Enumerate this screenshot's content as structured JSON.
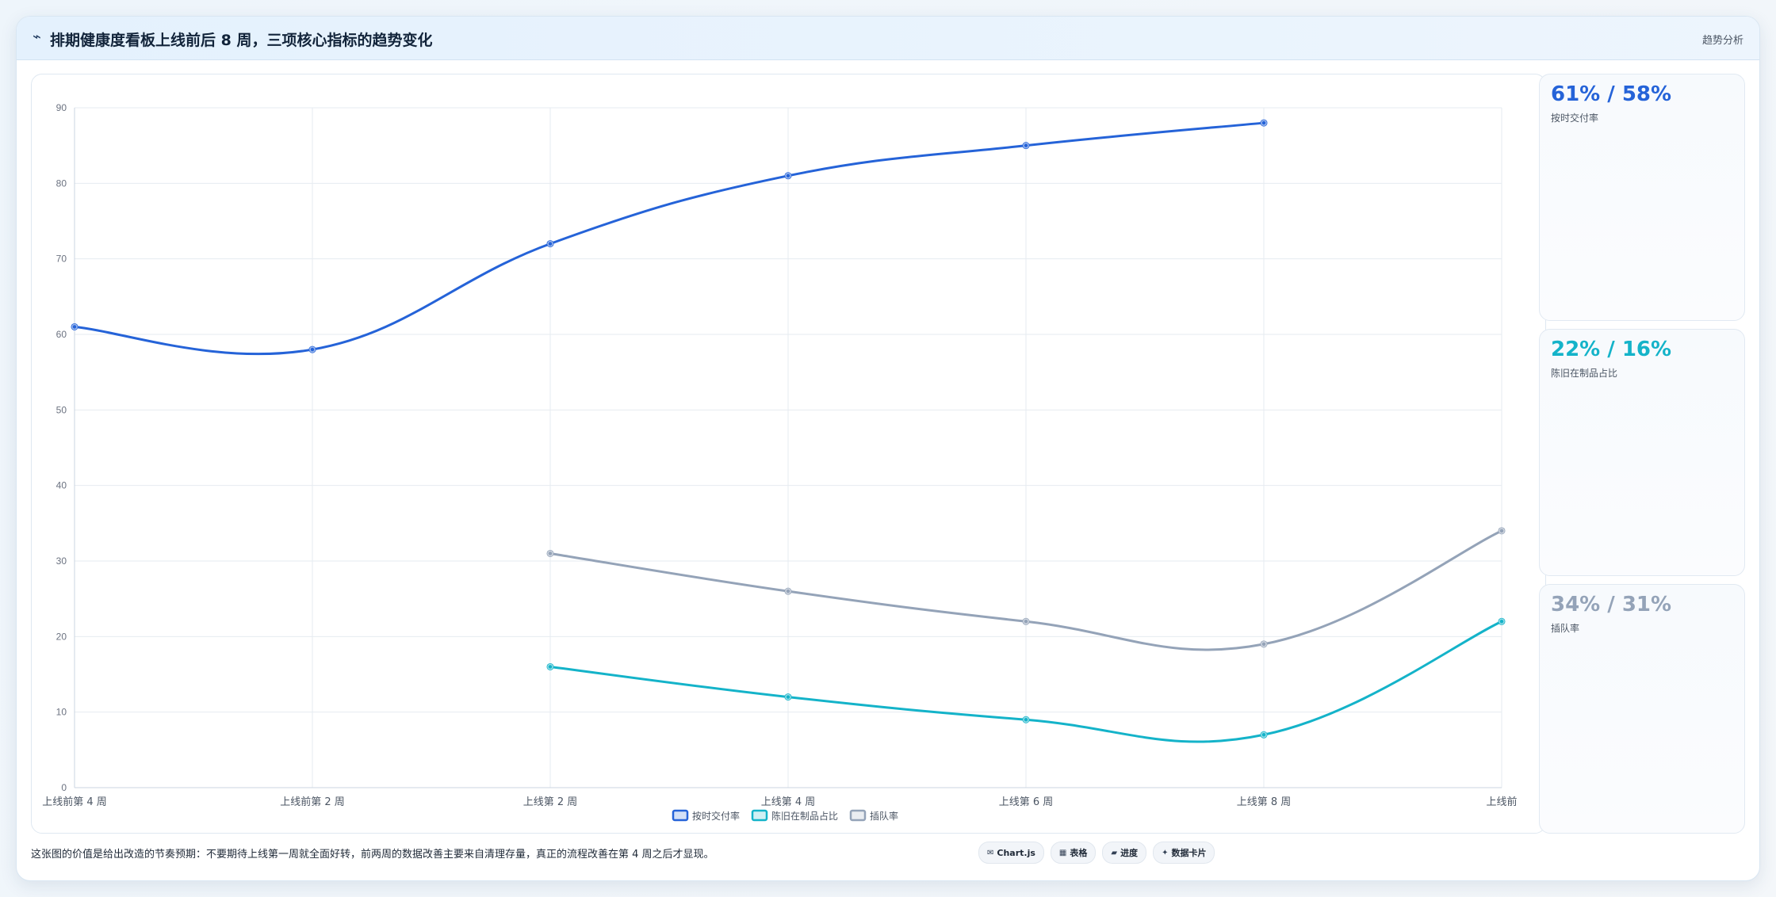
{
  "header": {
    "icon": "trend-icon",
    "title": "排期健康度看板上线前后 8 周，三项核心指标的趋势变化",
    "action_label": "趋势分析"
  },
  "colors": {
    "on_time": "#2563d8",
    "stale_wip": "#14b3c9",
    "insert": "#94a3b8",
    "grid": "#e6ebf1",
    "tick": "#6b7280"
  },
  "stats": [
    {
      "value": "61% / 58%",
      "label": "按时交付率",
      "color": "#2563d8"
    },
    {
      "value": "22% / 16%",
      "label": "陈旧在制品占比",
      "color": "#14b3c9"
    },
    {
      "value": "34% / 31%",
      "label": "插队率",
      "color": "#94a3b8"
    }
  ],
  "chart_data": {
    "type": "line",
    "title": "",
    "xlabel": "",
    "ylabel": "",
    "categories": [
      "上线前第 4 周",
      "上线前第 2 周",
      "上线第 2 周",
      "上线第 4 周",
      "上线第 6 周",
      "上线第 8 周",
      "上线前"
    ],
    "ylim": [
      0,
      90
    ],
    "yticks": [
      0,
      10,
      20,
      30,
      40,
      50,
      60,
      70,
      80,
      90
    ],
    "grid": true,
    "legend_position": "bottom",
    "series": [
      {
        "name": "按时交付率",
        "color": "#2563d8",
        "values": [
          61,
          58,
          72,
          81,
          85,
          88,
          null
        ]
      },
      {
        "name": "陈旧在制品占比",
        "color": "#14b3c9",
        "values": [
          null,
          null,
          16,
          12,
          9,
          7,
          22
        ]
      },
      {
        "name": "插队率",
        "color": "#94a3b8",
        "values": [
          null,
          null,
          31,
          26,
          22,
          19,
          34
        ]
      }
    ]
  },
  "footer": {
    "note": "这张图的价值是给出改造的节奏预期：不要期待上线第一周就全面好转，前两周的数据改善主要来自清理存量，真正的流程改善在第 4 周之后才显现。",
    "pills": [
      {
        "icon": "chart-icon",
        "glyph": "✉",
        "label": "Chart.js"
      },
      {
        "icon": "table-icon",
        "glyph": "▦",
        "label": "表格"
      },
      {
        "icon": "progress-icon",
        "glyph": "▰",
        "label": "进度"
      },
      {
        "icon": "card-icon",
        "glyph": "✦",
        "label": "数据卡片"
      }
    ]
  }
}
